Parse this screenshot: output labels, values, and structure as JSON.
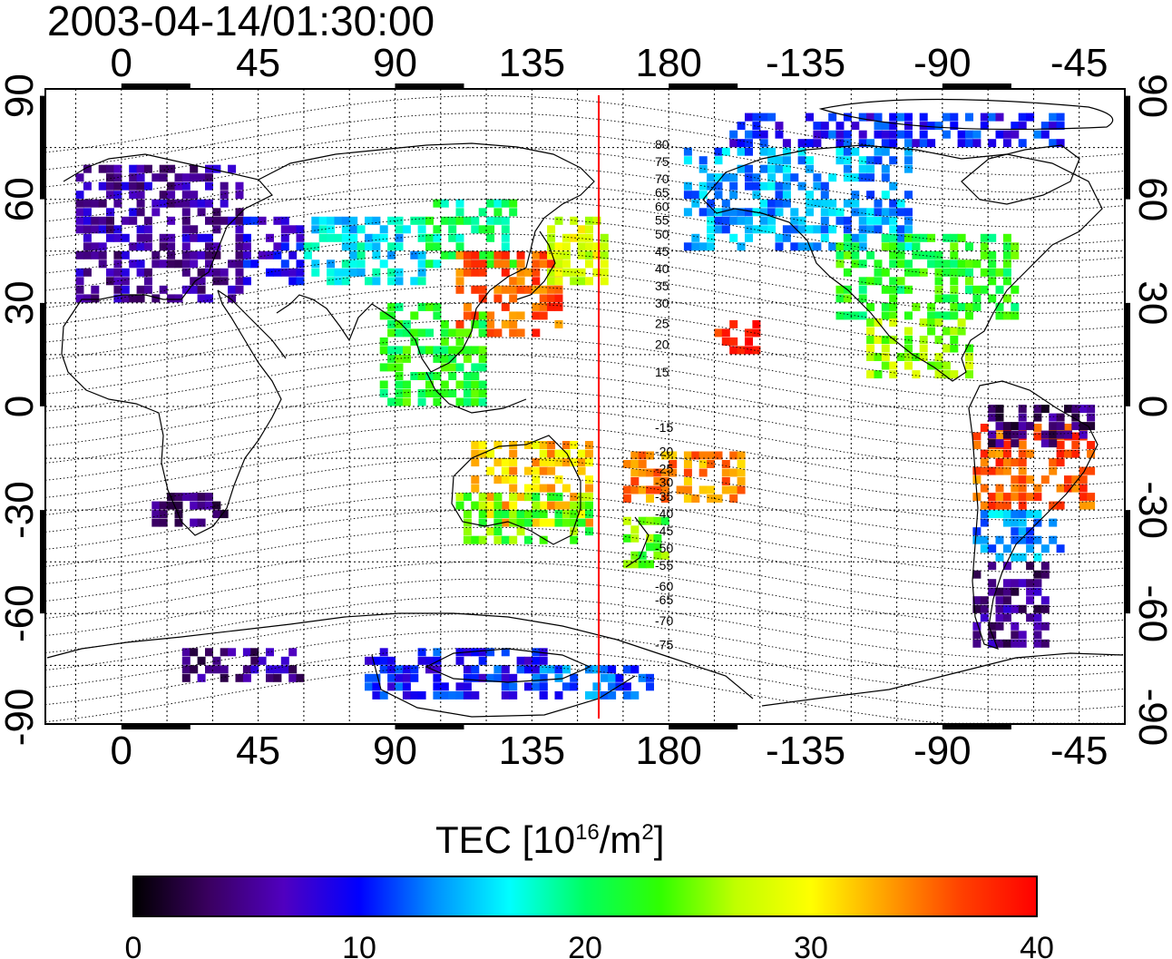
{
  "title": "2003-04-14/01:30:00",
  "map": {
    "lon_ticks": [
      "0",
      "45",
      "90",
      "135",
      "180",
      "-135",
      "-90",
      "-45"
    ],
    "lon_tick_values": [
      0,
      45,
      90,
      135,
      180,
      -135,
      -90,
      -45
    ],
    "lat_ticks": [
      "90",
      "60",
      "30",
      "0",
      "-30",
      "-60",
      "-90"
    ],
    "lat_tick_values": [
      90,
      60,
      30,
      0,
      -30,
      -60,
      -90
    ],
    "lon_range": [
      -25,
      330
    ],
    "lat_range": [
      -92,
      92
    ],
    "grid": "dotted 15 degree",
    "marker_line_lon": 157,
    "marker_line_color": "#ff0000",
    "contour_labels": [
      "80",
      "75",
      "70",
      "65",
      "60",
      "55",
      "50",
      "45",
      "40",
      "35",
      "30",
      "25",
      "20",
      "15",
      "-15",
      "-20",
      "-25",
      "-30",
      "-35",
      "-40",
      "-45",
      "-50",
      "-55",
      "-60",
      "-65",
      "-70",
      "-75"
    ],
    "contour_label_lats": [
      76,
      71,
      66,
      62,
      58,
      54,
      50,
      45,
      40,
      35,
      30,
      24,
      18,
      10,
      -6,
      -13,
      -18,
      -22,
      -26,
      -31,
      -36,
      -41,
      -46,
      -52,
      -56,
      -62,
      -69
    ]
  },
  "colorbar": {
    "title": "TEC  [10",
    "title_exp": "16",
    "title_unit": "/m",
    "title_exp2": "2",
    "title_end": "]",
    "tick_labels": [
      "0",
      "10",
      "20",
      "30",
      "40"
    ],
    "tick_values": [
      0,
      10,
      20,
      30,
      40
    ],
    "range": [
      0,
      40
    ],
    "colors": [
      "#000000",
      "#3a0060",
      "#5000c0",
      "#0000ff",
      "#0090ff",
      "#00ffff",
      "#00ff60",
      "#30ff00",
      "#c0ff00",
      "#ffff00",
      "#ffa000",
      "#ff4000",
      "#ff0000"
    ]
  },
  "chart_data": {
    "type": "heatmap",
    "title": "2003-04-14/01:30:00",
    "xlabel": "",
    "ylabel": "",
    "value_label": "TEC [10^16/m^2]",
    "value_range": [
      0,
      40
    ],
    "regions": [
      {
        "lon": [
          -15,
          40
        ],
        "lat": [
          30,
          70
        ],
        "tec": 6
      },
      {
        "lon": [
          40,
          60
        ],
        "lat": [
          35,
          55
        ],
        "tec": 9
      },
      {
        "lon": [
          60,
          100
        ],
        "lat": [
          35,
          55
        ],
        "tec": 16
      },
      {
        "lon": [
          100,
          130
        ],
        "lat": [
          40,
          60
        ],
        "tec": 20
      },
      {
        "lon": [
          110,
          145
        ],
        "lat": [
          20,
          45
        ],
        "tec": 36
      },
      {
        "lon": [
          140,
          160
        ],
        "lat": [
          35,
          55
        ],
        "tec": 28
      },
      {
        "lon": [
          85,
          120
        ],
        "lat": [
          0,
          30
        ],
        "tec": 22
      },
      {
        "lon": [
          115,
          155
        ],
        "lat": [
          -35,
          -10
        ],
        "tec": 32
      },
      {
        "lon": [
          110,
          155
        ],
        "lat": [
          -40,
          -25
        ],
        "tec": 24
      },
      {
        "lon": [
          165,
          180
        ],
        "lat": [
          -47,
          -34
        ],
        "tec": 24
      },
      {
        "lon": [
          165,
          205
        ],
        "lat": [
          -28,
          -15
        ],
        "tec": 34
      },
      {
        "lon": [
          195,
          210
        ],
        "lat": [
          15,
          25
        ],
        "tec": 38
      },
      {
        "lon": [
          185,
          260
        ],
        "lat": [
          45,
          75
        ],
        "tec": 14
      },
      {
        "lon": [
          235,
          295
        ],
        "lat": [
          25,
          50
        ],
        "tec": 22
      },
      {
        "lon": [
          245,
          280
        ],
        "lat": [
          8,
          25
        ],
        "tec": 26
      },
      {
        "lon": [
          200,
          310
        ],
        "lat": [
          75,
          85
        ],
        "tec": 10
      },
      {
        "lon": [
          280,
          320
        ],
        "lat": [
          -30,
          -5
        ],
        "tec": 36
      },
      {
        "lon": [
          280,
          310
        ],
        "lat": [
          -45,
          -30
        ],
        "tec": 14
      },
      {
        "lon": [
          280,
          305
        ],
        "lat": [
          -70,
          -45
        ],
        "tec": 5
      },
      {
        "lon": [
          285,
          320
        ],
        "lat": [
          -12,
          0
        ],
        "tec": 4
      },
      {
        "lon": [
          10,
          35
        ],
        "lat": [
          -35,
          -25
        ],
        "tec": 4
      },
      {
        "lon": [
          80,
          140
        ],
        "lat": [
          -85,
          -70
        ],
        "tec": 10
      },
      {
        "lon": [
          135,
          175
        ],
        "lat": [
          -85,
          -75
        ],
        "tec": 12
      },
      {
        "lon": [
          20,
          60
        ],
        "lat": [
          -80,
          -70
        ],
        "tec": 5
      }
    ]
  }
}
